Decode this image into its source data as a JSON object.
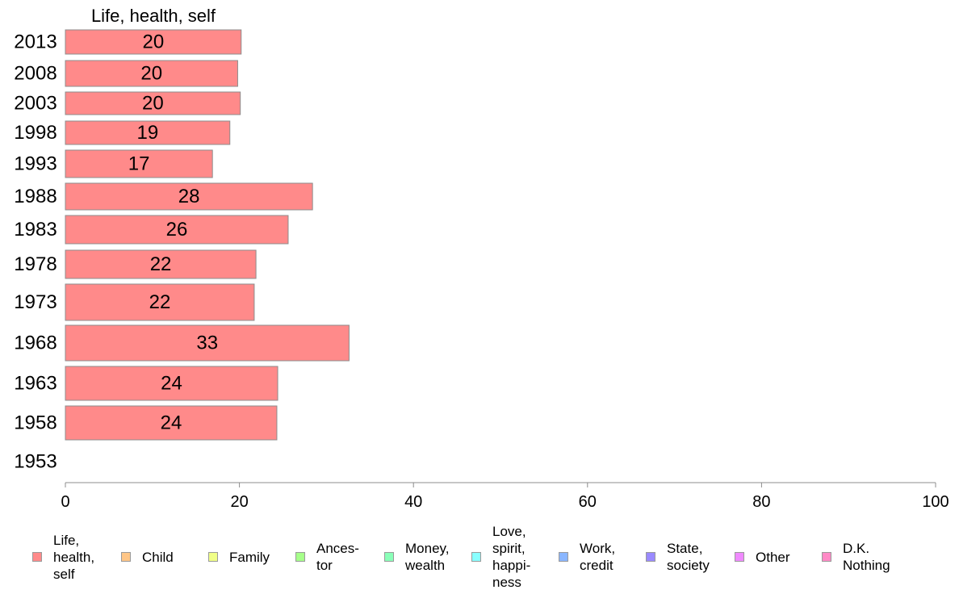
{
  "chart_data": {
    "type": "bar",
    "orientation": "horizontal",
    "title": "Life, health, self",
    "categories": [
      "2013",
      "2008",
      "2003",
      "1998",
      "1993",
      "1988",
      "1983",
      "1978",
      "1973",
      "1968",
      "1963",
      "1958",
      "1953"
    ],
    "series": [
      {
        "name": "Life, health, self",
        "color": "#ff8a8a",
        "values": [
          20.2,
          19.8,
          20.1,
          18.9,
          16.9,
          28.4,
          25.6,
          21.9,
          21.7,
          32.6,
          24.4,
          24.3,
          null
        ],
        "labels": [
          "20",
          "20",
          "20",
          "19",
          "17",
          "28",
          "26",
          "22",
          "22",
          "33",
          "24",
          "24",
          ""
        ]
      }
    ],
    "xlim": [
      0,
      100
    ],
    "xticks": [
      "0",
      "20",
      "40",
      "60",
      "80",
      "100"
    ],
    "grid": false,
    "legend_position": "bottom"
  },
  "legend": [
    {
      "label": "Life,\nhealth,\nself",
      "color": "#ff8a8a"
    },
    {
      "label": "Child",
      "color": "#ffc687"
    },
    {
      "label": "Family",
      "color": "#f0ff87"
    },
    {
      "label": "Ances-\ntor",
      "color": "#a6ff8a"
    },
    {
      "label": "Money,\nwealth",
      "color": "#8affb8"
    },
    {
      "label": "Love,\nspirit,\nhappi-\nness",
      "color": "#8affff"
    },
    {
      "label": "Work,\ncredit",
      "color": "#8ab6ff"
    },
    {
      "label": "State,\nsociety",
      "color": "#9a8aff"
    },
    {
      "label": "Other",
      "color": "#f08aff"
    },
    {
      "label": "D.K.\nNothing",
      "color": "#ff8ac6"
    }
  ]
}
